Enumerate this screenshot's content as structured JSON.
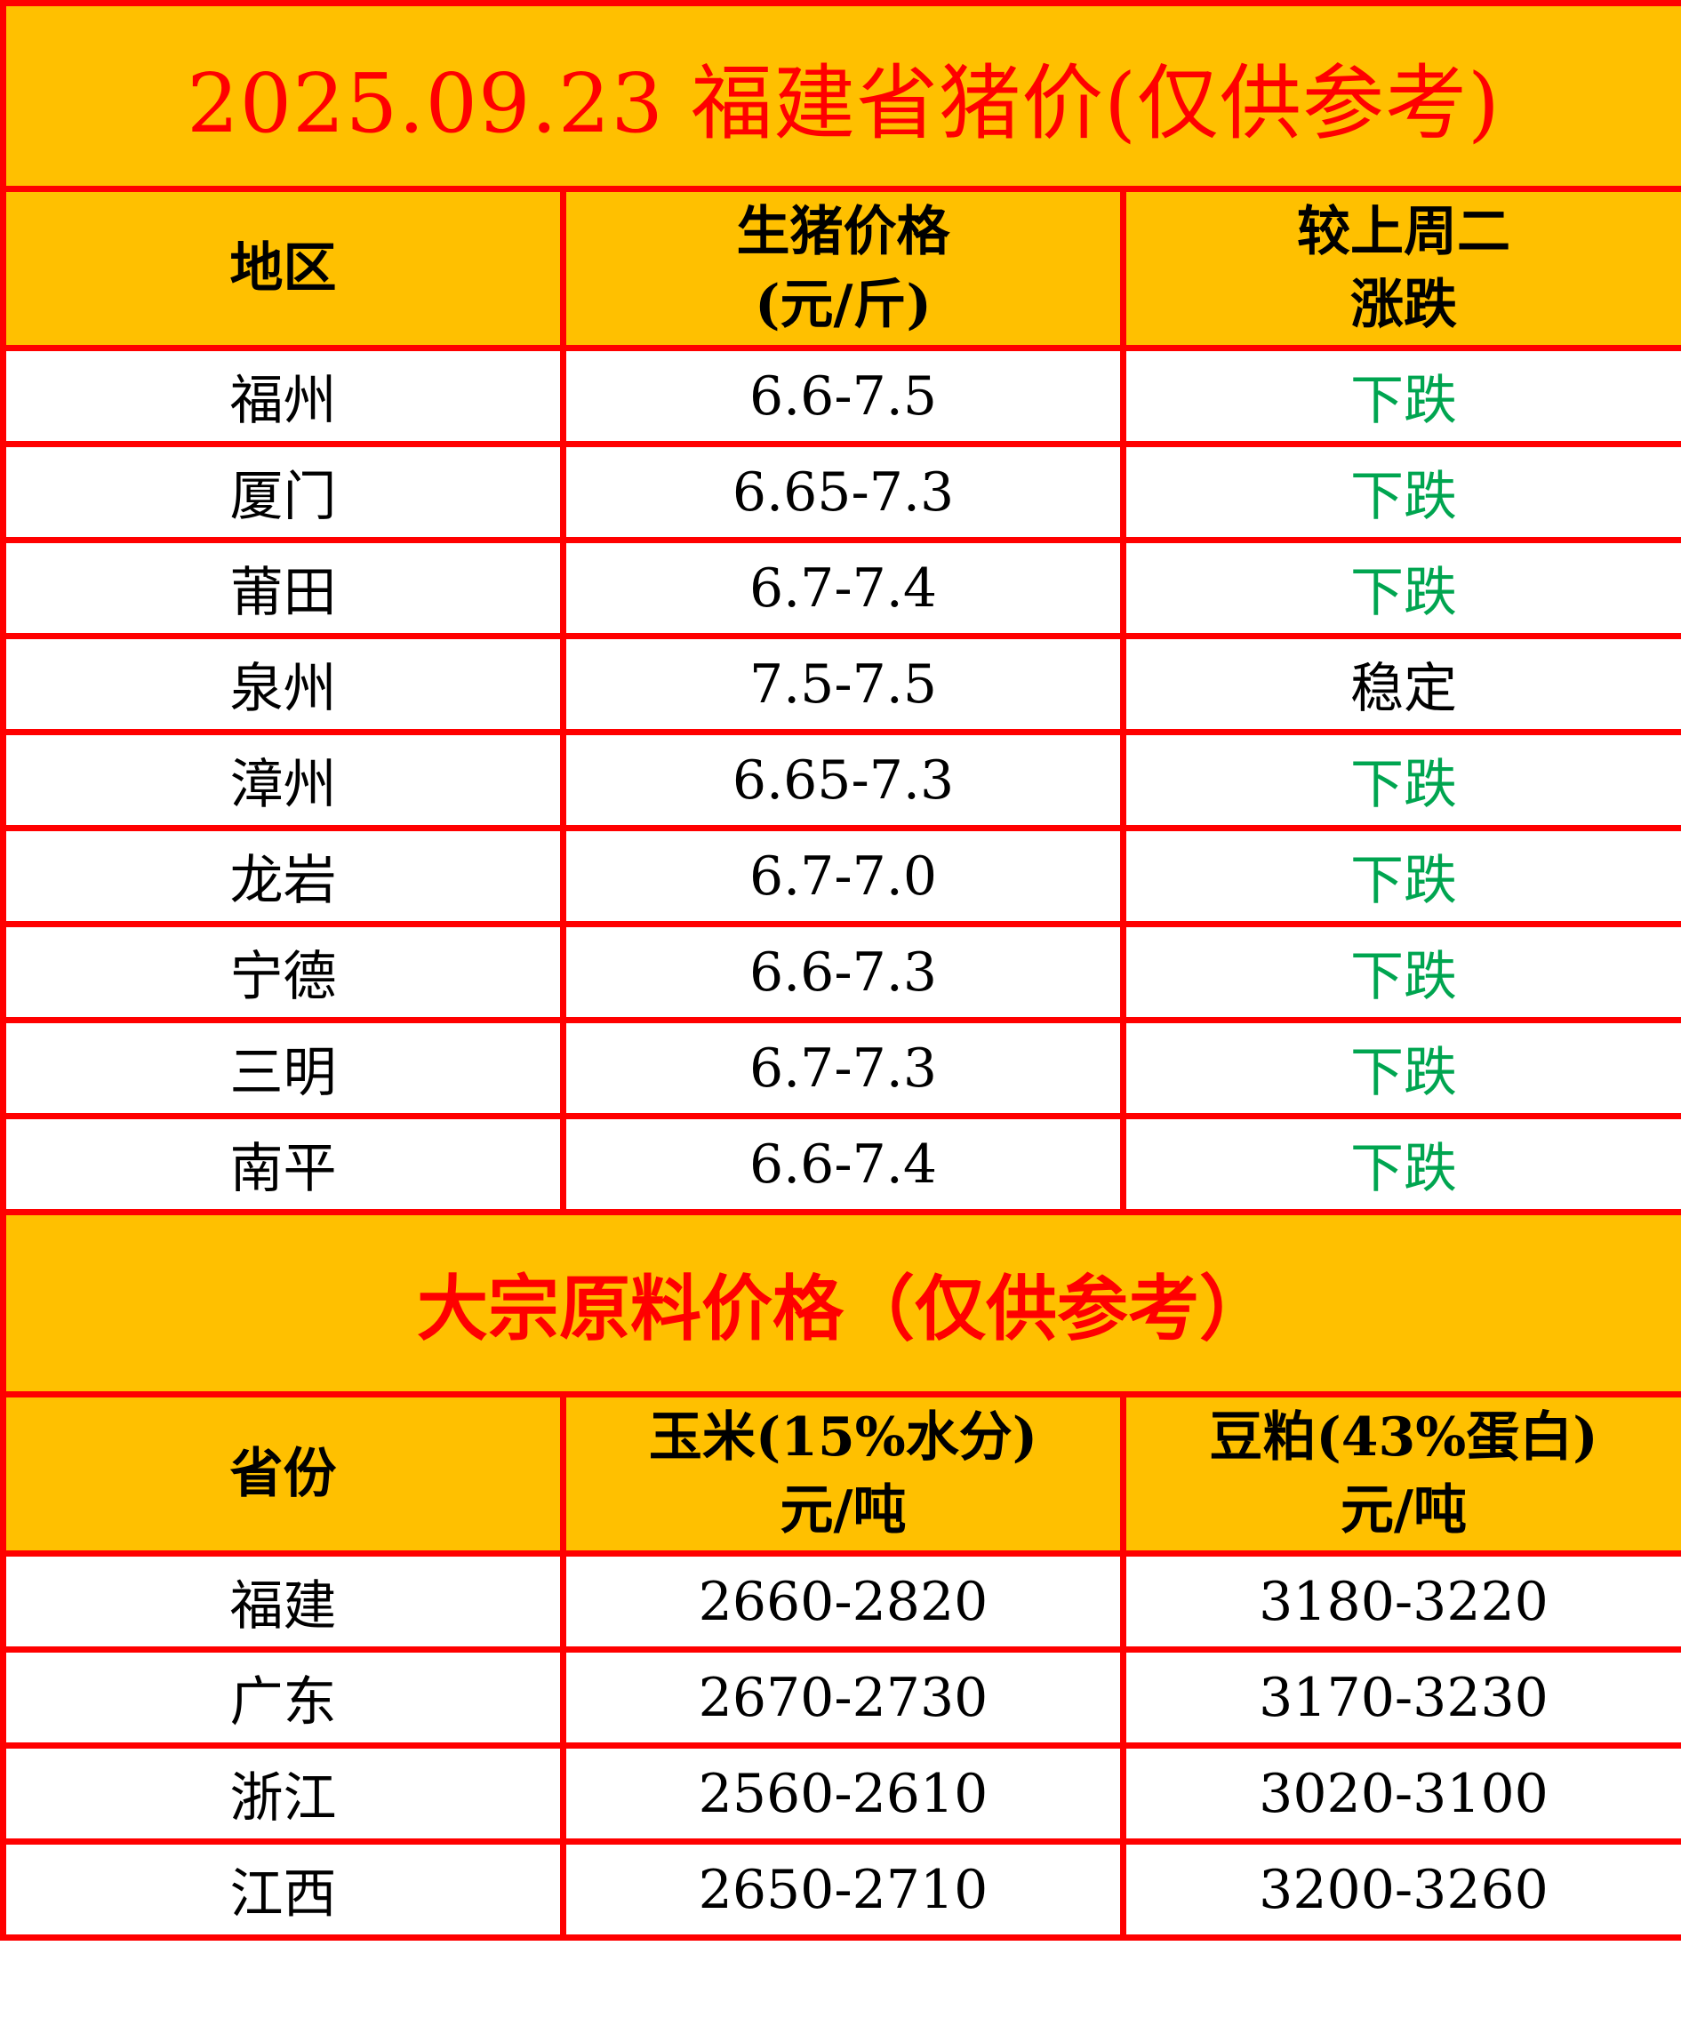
{
  "pork": {
    "title": "2025.09.23 福建省猪价(仅供参考)",
    "headers": [
      "地区",
      "生猪价格\n(元/斤)",
      "较上周二\n涨跌"
    ],
    "header_lines": [
      [
        "地区"
      ],
      [
        "生猪价格",
        "(元/斤)"
      ],
      [
        "较上周二",
        "涨跌"
      ]
    ],
    "rows": [
      {
        "region": "福州",
        "price": "6.6-7.5",
        "change": "下跌"
      },
      {
        "region": "厦门",
        "price": "6.65-7.3",
        "change": "下跌"
      },
      {
        "region": "莆田",
        "price": "6.7-7.4",
        "change": "下跌"
      },
      {
        "region": "泉州",
        "price": "7.5-7.5",
        "change": "稳定"
      },
      {
        "region": "漳州",
        "price": "6.65-7.3",
        "change": "下跌"
      },
      {
        "region": "龙岩",
        "price": "6.7-7.0",
        "change": "下跌"
      },
      {
        "region": "宁德",
        "price": "6.6-7.3",
        "change": "下跌"
      },
      {
        "region": "三明",
        "price": "6.7-7.3",
        "change": "下跌"
      },
      {
        "region": "南平",
        "price": "6.6-7.4",
        "change": "下跌"
      }
    ]
  },
  "feed": {
    "title": "大宗原料价格（仅供参考）",
    "header_lines": [
      [
        "省份"
      ],
      [
        "玉米(15%水分)",
        "元/吨"
      ],
      [
        "豆粕(43%蛋白)",
        "元/吨"
      ]
    ],
    "rows": [
      {
        "province": "福建",
        "corn": "2660-2820",
        "soymeal": "3180-3220"
      },
      {
        "province": "广东",
        "corn": "2670-2730",
        "soymeal": "3170-3230"
      },
      {
        "province": "浙江",
        "corn": "2560-2610",
        "soymeal": "3020-3100"
      },
      {
        "province": "江西",
        "corn": "2650-2710",
        "soymeal": "3200-3260"
      }
    ]
  },
  "colors": {
    "border": "#ff0000",
    "header_bg": "#ffc000",
    "down": "#00a550",
    "title": "#ff0000"
  }
}
